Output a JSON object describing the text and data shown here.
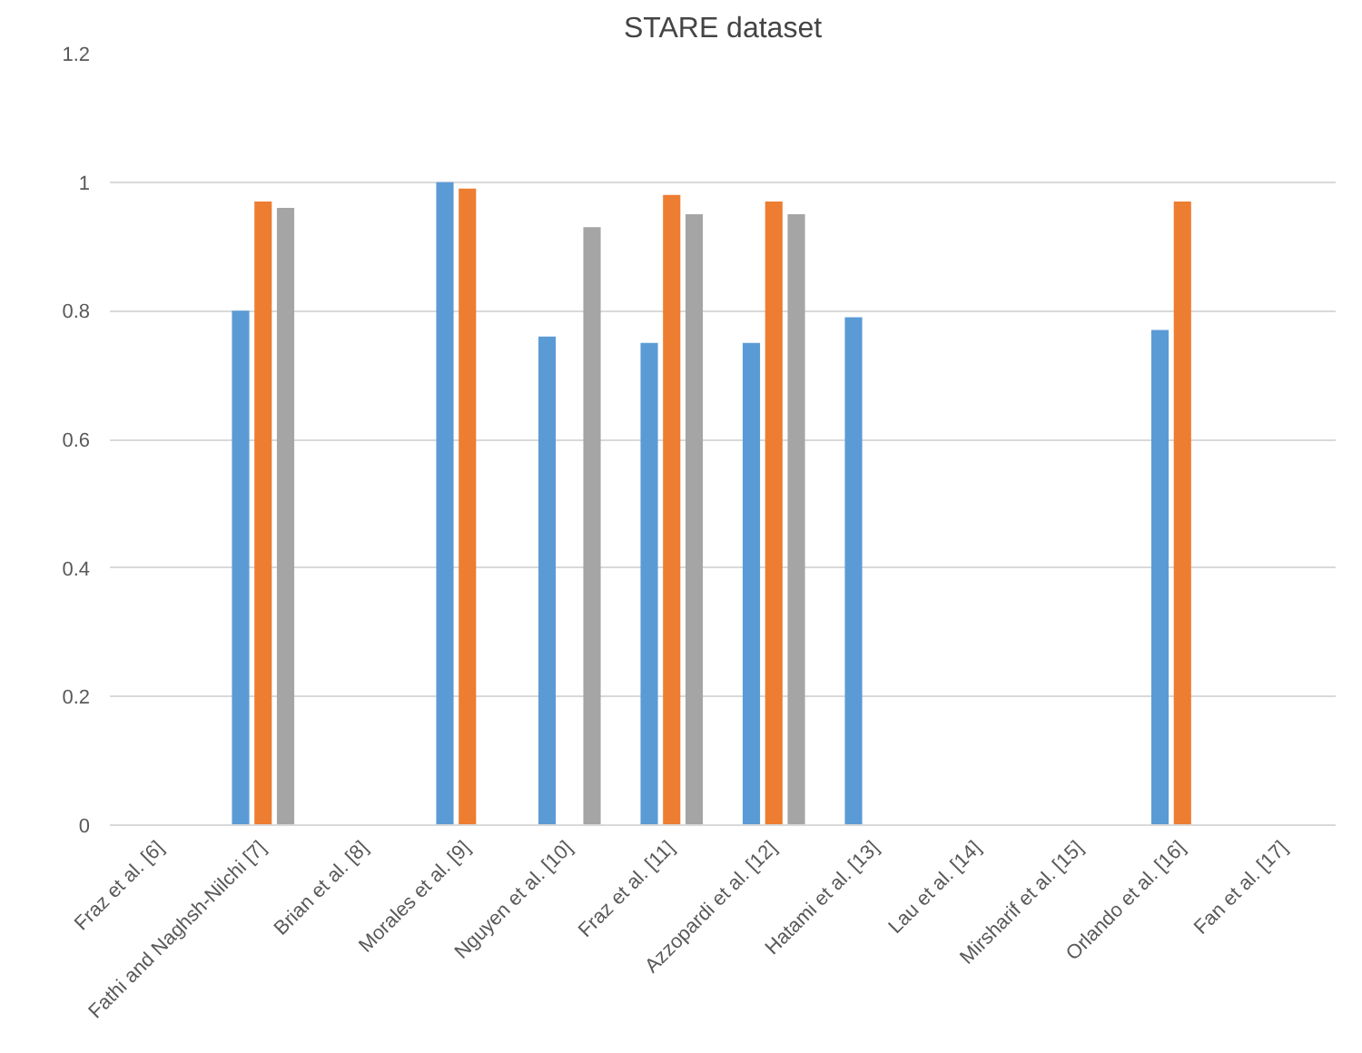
{
  "chart_data": {
    "type": "bar",
    "title": "STARE dataset",
    "categories": [
      "Fraz et al. [6]",
      "Fathi and Naghsh-Nilchi [7]",
      "Brian et al. [8]",
      "Morales et al. [9]",
      "Nguyen et al. [10]",
      "Fraz et al. [11]",
      "Azzopardi et al. [12]",
      "Hatami et al. [13]",
      "Lau et al. [14]",
      "Mirsharif et al. [15]",
      "Orlando et al. [16]",
      "Fan et al. [17]"
    ],
    "series": [
      {
        "color": "#5b9bd5",
        "values": [
          null,
          0.8,
          null,
          1.0,
          0.76,
          0.75,
          0.75,
          0.79,
          null,
          null,
          0.77,
          null
        ]
      },
      {
        "color": "#ed7d31",
        "values": [
          null,
          0.97,
          null,
          0.99,
          null,
          0.98,
          0.97,
          null,
          null,
          null,
          0.97,
          null
        ]
      },
      {
        "color": "#a5a5a5",
        "values": [
          null,
          0.96,
          null,
          null,
          0.93,
          0.95,
          0.95,
          null,
          null,
          null,
          null,
          null
        ]
      }
    ],
    "ylim": [
      0,
      1.2
    ],
    "yticks": [
      0,
      0.2,
      0.4,
      0.6,
      0.8,
      1,
      1.2
    ],
    "grid": "y"
  }
}
